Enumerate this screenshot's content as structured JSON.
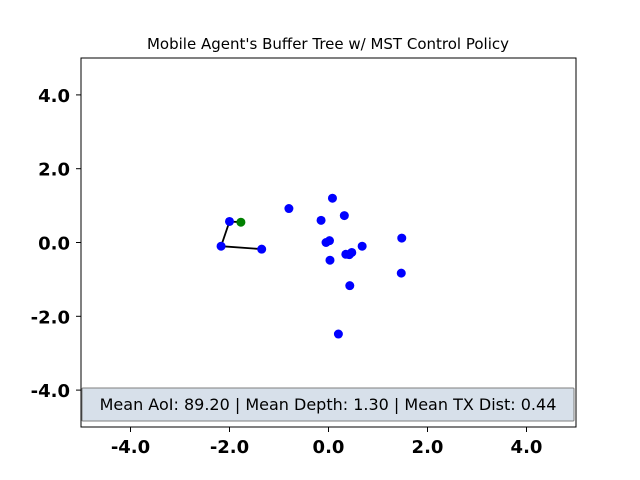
{
  "chart_data": {
    "type": "scatter",
    "title": "Mobile Agent's Buffer Tree w/ MST Control Policy",
    "xlabel": "",
    "ylabel": "",
    "xlim": [
      -5,
      5
    ],
    "ylim": [
      -5,
      5
    ],
    "x_ticks": [
      -4.0,
      -2.0,
      0.0,
      2.0,
      4.0
    ],
    "y_ticks": [
      -4.0,
      -2.0,
      0.0,
      2.0,
      4.0
    ],
    "x_tick_labels": [
      "-4.0",
      "-2.0",
      "0.0",
      "2.0",
      "4.0"
    ],
    "y_tick_labels": [
      "-4.0",
      "-2.0",
      "0.0",
      "2.0",
      "4.0"
    ],
    "grid": false,
    "agent": {
      "x": -1.77,
      "y": 0.55,
      "color": "#008000"
    },
    "nodes": {
      "color": "#0000ff",
      "points": [
        {
          "x": -2.0,
          "y": 0.57
        },
        {
          "x": -2.17,
          "y": -0.1
        },
        {
          "x": -1.35,
          "y": -0.18
        },
        {
          "x": -0.8,
          "y": 0.92
        },
        {
          "x": 0.08,
          "y": 1.2
        },
        {
          "x": -0.15,
          "y": 0.6
        },
        {
          "x": 0.32,
          "y": 0.73
        },
        {
          "x": -0.05,
          "y": 0.0
        },
        {
          "x": 0.02,
          "y": 0.05
        },
        {
          "x": 0.03,
          "y": -0.48
        },
        {
          "x": 0.35,
          "y": -0.32
        },
        {
          "x": 0.47,
          "y": -0.27
        },
        {
          "x": 0.42,
          "y": -0.33
        },
        {
          "x": 0.68,
          "y": -0.1
        },
        {
          "x": 0.43,
          "y": -1.17
        },
        {
          "x": 0.2,
          "y": -2.48
        },
        {
          "x": 1.48,
          "y": 0.12
        },
        {
          "x": 1.47,
          "y": -0.83
        }
      ]
    },
    "edges": [
      {
        "from": [
          -1.77,
          0.55
        ],
        "to": [
          -2.0,
          0.57
        ]
      },
      {
        "from": [
          -2.0,
          0.57
        ],
        "to": [
          -2.17,
          -0.1
        ]
      },
      {
        "from": [
          -2.17,
          -0.1
        ],
        "to": [
          -1.35,
          -0.18
        ]
      }
    ],
    "edge_color": "#000000",
    "info_box": {
      "text": "Mean AoI: 89.20 | Mean Depth: 1.30 | Mean TX Dist: 0.44",
      "background": "#d7e0ea",
      "border": "#7f7f7f",
      "placement": "bottom"
    }
  }
}
